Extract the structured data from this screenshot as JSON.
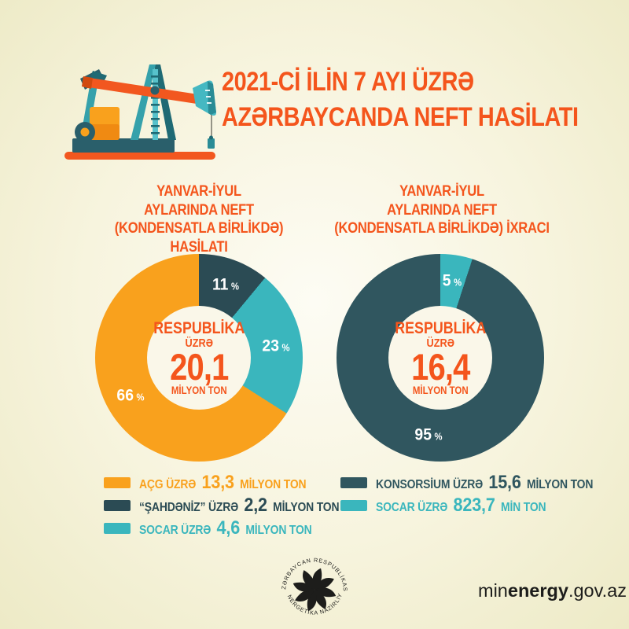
{
  "palette": {
    "background_edge": "#edeac6",
    "background_center": "#fdfcf4",
    "accent_orange": "#f4551c",
    "donut_orange": "#f9a11d",
    "teal_dark_left": "#2b4b54",
    "teal_dark_right": "#30565f",
    "cyan": "#3ab6bd",
    "hole_fill": "#faf7e9",
    "text_dark": "#1d1d1b",
    "percent_label_color": "#ffffff"
  },
  "header": {
    "title_line1": "2021-Cİ İLİN 7 AYI ÜZRƏ",
    "title_line2": "AZƏRBAYCANDA NEFT HASİLATI",
    "pump_icon": "oil-pumpjack-illustration"
  },
  "chart_data": [
    {
      "type": "pie",
      "style": "donut",
      "title": "YANVAR-İYUL AYLARINDA NEFT (KONDENSATLA BİRLİKDƏ) HASİLATI",
      "title_lines": [
        "YANVAR-İYUL",
        "AYLARINDA NEFT",
        "(KONDENSATLA BİRLİKDƏ) HASİLATI"
      ],
      "center": {
        "line1": "RESPUBLİKA",
        "line2": "ÜZRƏ",
        "value": "20,1",
        "unit": "MİLYON TON"
      },
      "percent_sign": "%",
      "start_angle_deg": 0,
      "segments": [
        {
          "name": "“ŞAHDƏNİZ” ÜZRƏ",
          "pct": 11,
          "amount": "2,2",
          "unit": "MİLYON TON",
          "color": "#2b4b54"
        },
        {
          "name": "SOCAR ÜZRƏ",
          "pct": 23,
          "amount": "4,6",
          "unit": "MİLYON TON",
          "color": "#3ab6bd"
        },
        {
          "name": "AÇG ÜZRƏ",
          "pct": 66,
          "amount": "13,3",
          "unit": "MİLYON TON",
          "color": "#f9a11d"
        }
      ],
      "legend": [
        {
          "prefix": "AÇG ÜZRƏ",
          "value": "13,3",
          "unit": "MİLYON TON",
          "color": "#f9a11d"
        },
        {
          "prefix": "“ŞAHDƏNİZ” ÜZRƏ",
          "value": "2,2",
          "unit": "MİLYON TON",
          "color": "#2b4b54"
        },
        {
          "prefix": "SOCAR ÜZRƏ",
          "value": "4,6",
          "unit": "MİLYON TON",
          "color": "#3ab6bd"
        }
      ]
    },
    {
      "type": "pie",
      "style": "donut",
      "title": "YANVAR-İYUL AYLARINDA NEFT (KONDENSATLA BİRLİKDƏ) İXRACI",
      "title_lines": [
        "YANVAR-İYUL",
        "AYLARINDA NEFT",
        "(KONDENSATLA BİRLİKDƏ) İXRACI"
      ],
      "center": {
        "line1": "RESPUBLİKA",
        "line2": "ÜZRƏ",
        "value": "16,4",
        "unit": "MİLYON TON"
      },
      "percent_sign": "%",
      "start_angle_deg": 0,
      "segments": [
        {
          "name": "SOCAR ÜZRƏ",
          "pct": 5,
          "amount": "823,7",
          "unit": "MİN TON",
          "color": "#3ab6bd"
        },
        {
          "name": "KONSORSİUM ÜZRƏ",
          "pct": 95,
          "amount": "15,6",
          "unit": "MİLYON TON",
          "color": "#30565f"
        }
      ],
      "legend": [
        {
          "prefix": "KONSORSİUM ÜZRƏ",
          "value": "15,6",
          "unit": "MİLYON TON",
          "color": "#30565f"
        },
        {
          "prefix": "SOCAR ÜZRƏ",
          "value": "823,7",
          "unit": "MİN TON",
          "color": "#3ab6bd"
        }
      ]
    }
  ],
  "footer": {
    "logo": {
      "top_text": "AZƏRBAYCAN RESPUBLİKASI",
      "bottom_text": "ENERGETİKA NAZİRLİYİ"
    },
    "website": {
      "prefix": "min",
      "bold": "energy",
      "suffix": ".gov.az"
    }
  }
}
